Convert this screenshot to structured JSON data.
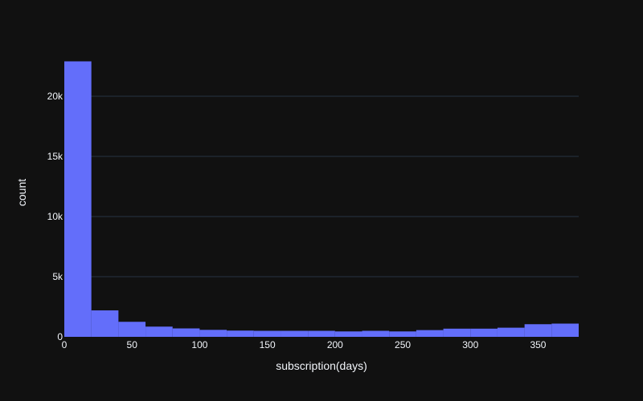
{
  "chart_data": {
    "type": "bar",
    "title": "",
    "xlabel": "subscription(days)",
    "ylabel": "count",
    "bin_width": 20,
    "bin_starts": [
      0,
      20,
      40,
      60,
      80,
      100,
      120,
      140,
      160,
      180,
      200,
      220,
      240,
      260,
      280,
      300,
      320,
      340,
      360
    ],
    "values": [
      22900,
      2200,
      1250,
      850,
      700,
      580,
      520,
      500,
      500,
      500,
      450,
      500,
      450,
      560,
      680,
      680,
      760,
      1050,
      1100
    ],
    "xlim": [
      0,
      380
    ],
    "ylim": [
      0,
      24000
    ],
    "x_ticks": [
      0,
      50,
      100,
      150,
      200,
      250,
      300,
      350
    ],
    "x_tick_labels": [
      "0",
      "50",
      "100",
      "150",
      "200",
      "250",
      "300",
      "350"
    ],
    "y_ticks": [
      0,
      5000,
      10000,
      15000,
      20000
    ],
    "y_tick_labels": [
      "0",
      "5k",
      "10k",
      "15k",
      "20k"
    ],
    "grid": true,
    "colors": {
      "background": "#111111",
      "bar": "#636efa",
      "grid": "#283442",
      "text": "#f2f5fa"
    }
  }
}
